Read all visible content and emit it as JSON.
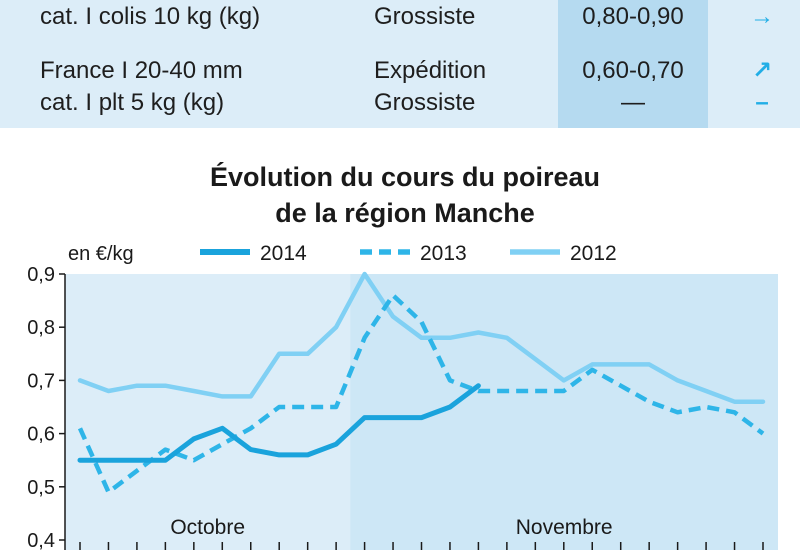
{
  "table": {
    "rows": [
      {
        "product": [
          "cat. I colis 10 kg (kg)"
        ],
        "market": [
          "Grossiste"
        ],
        "price": [
          "0,80-0,90"
        ],
        "trend": [
          "→"
        ]
      },
      {
        "product": [
          "France I 20-40 mm",
          "cat. I plt 5 kg (kg)"
        ],
        "market": [
          "Expédition",
          "Grossiste"
        ],
        "price": [
          "0,60-0,70",
          "—"
        ],
        "trend": [
          "↗",
          "–"
        ]
      }
    ]
  },
  "colors": {
    "s2014": "#1aa3dc",
    "s2013": "#2eb5e8",
    "s2012": "#80d0f4",
    "bg": "#dcedf8",
    "bg_november": "#cde7f6"
  },
  "chart_data": {
    "type": "line",
    "title": [
      "Évolution du cours du poireau",
      "de la région Manche"
    ],
    "ylabel": "en €/kg",
    "ylim": [
      0.4,
      0.9
    ],
    "yticks": [
      0.4,
      0.5,
      0.6,
      0.7,
      0.8,
      0.9
    ],
    "ytick_labels": [
      "0,4",
      "0,5",
      "0,6",
      "0,7",
      "0,8",
      "0,9"
    ],
    "x_count": 25,
    "month_labels": [
      "Octobre",
      "Novembre"
    ],
    "november_start_index": 10,
    "grid": false,
    "legend_position": "top",
    "series": [
      {
        "name": "2014",
        "style": "solid-thick",
        "values": [
          0.55,
          0.55,
          0.55,
          0.55,
          0.59,
          0.61,
          0.57,
          0.56,
          0.56,
          0.58,
          0.63,
          0.63,
          0.63,
          0.65,
          0.69,
          null,
          null,
          null,
          null,
          null,
          null,
          null,
          null,
          null,
          null
        ]
      },
      {
        "name": "2013",
        "style": "dashed",
        "values": [
          0.61,
          0.49,
          0.53,
          0.57,
          0.55,
          0.58,
          0.61,
          0.65,
          0.65,
          0.65,
          0.78,
          0.86,
          0.81,
          0.7,
          0.68,
          0.68,
          0.68,
          0.68,
          0.72,
          0.69,
          0.66,
          0.64,
          0.65,
          0.64,
          0.6
        ]
      },
      {
        "name": "2012",
        "style": "solid-light",
        "values": [
          0.7,
          0.68,
          0.69,
          0.69,
          0.68,
          0.67,
          0.67,
          0.75,
          0.75,
          0.8,
          0.9,
          0.82,
          0.78,
          0.78,
          0.79,
          0.78,
          0.74,
          0.7,
          0.73,
          0.73,
          0.73,
          0.7,
          0.68,
          0.66,
          0.66
        ]
      }
    ]
  }
}
